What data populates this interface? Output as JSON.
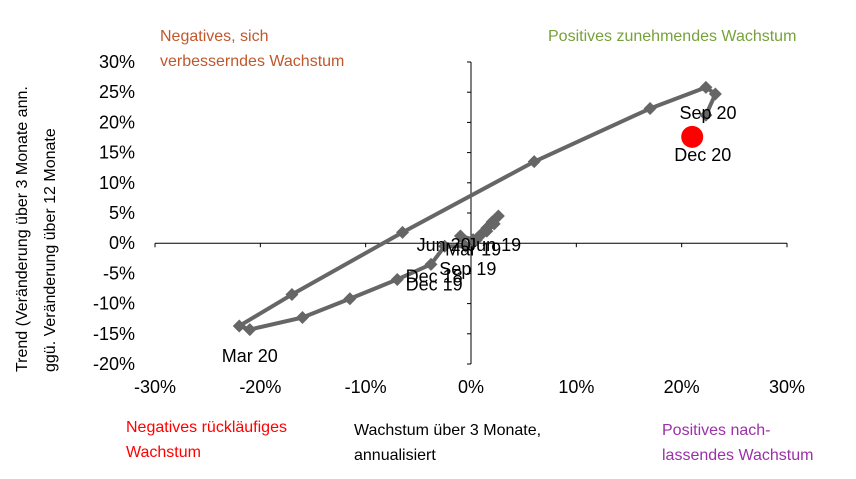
{
  "chart_data": {
    "type": "scatter",
    "xlabel": "Wachstum über 3 Monate, annualisiert",
    "xlabel_lines": [
      "Wachstum über 3 Monate,",
      "annualisiert"
    ],
    "ylabel_lines": [
      "Trend (Veränderung über 3 Monate ann.",
      "ggü. Veränderung über 12 Monate"
    ],
    "xlim": [
      -30,
      30
    ],
    "ylim": [
      -20,
      30
    ],
    "x_ticks": [
      -30,
      -20,
      -10,
      0,
      10,
      20,
      30
    ],
    "y_ticks": [
      -20,
      -15,
      -10,
      -5,
      0,
      5,
      10,
      15,
      20,
      25,
      30
    ],
    "x_tick_labels": [
      "-30%",
      "-20%",
      "-10%",
      "0%",
      "10%",
      "20%",
      "30%"
    ],
    "y_tick_labels": [
      "-20%",
      "-15%",
      "-10%",
      "-5%",
      "0%",
      "5%",
      "10%",
      "15%",
      "20%",
      "25%",
      "30%"
    ],
    "grid": false,
    "series": [
      {
        "color": "#666666",
        "marker": "diamond",
        "points": [
          {
            "x": 0.5,
            "y": 0.5
          },
          {
            "x": 1.0,
            "y": 1.5
          },
          {
            "x": 1.5,
            "y": 2.5
          },
          {
            "x": 2.0,
            "y": 3.5
          },
          {
            "x": 2.6,
            "y": 4.5
          },
          {
            "x": 2.2,
            "y": 3.2
          },
          {
            "x": 1.5,
            "y": 2.0
          },
          {
            "x": 0.8,
            "y": 1.2
          },
          {
            "x": 0.2,
            "y": 0.6
          },
          {
            "x": -1.0,
            "y": 1.2
          },
          {
            "x": -0.5,
            "y": -0.5
          },
          {
            "x": -2.5,
            "y": -0.5
          },
          {
            "x": -3.8,
            "y": -3.5
          },
          {
            "x": -7.0,
            "y": -6.0
          },
          {
            "x": -11.5,
            "y": -9.2
          },
          {
            "x": -16.0,
            "y": -12.3
          },
          {
            "x": -21.0,
            "y": -14.3
          },
          {
            "x": -22.0,
            "y": -13.7
          },
          {
            "x": -17.0,
            "y": -8.5
          },
          {
            "x": -6.5,
            "y": 1.8
          },
          {
            "x": 6.0,
            "y": 13.5
          },
          {
            "x": 17.0,
            "y": 22.3
          },
          {
            "x": 22.3,
            "y": 25.8
          },
          {
            "x": 23.2,
            "y": 24.7
          },
          {
            "x": 22.3,
            "y": 21.2
          }
        ]
      }
    ],
    "highlight": {
      "x": 21.0,
      "y": 17.6,
      "color": "#ff0000"
    },
    "annotations": [
      {
        "text": "Sep 20",
        "x": 22.5,
        "y": 20.6
      },
      {
        "text": "Dec 20",
        "x": 22.0,
        "y": 13.6
      },
      {
        "text": "Mar 20",
        "x": -21.0,
        "y": -19.7
      },
      {
        "text": "Jun 20",
        "x": -2.6,
        "y": -1.3
      },
      {
        "text": "Jun 19",
        "x": 2.2,
        "y": -1.3
      },
      {
        "text": "Mar 19",
        "x": 0.2,
        "y": -2.0
      },
      {
        "text": "Sep 19",
        "x": -0.3,
        "y": -5.3
      },
      {
        "text": "Dec 18",
        "x": -3.5,
        "y": -6.5
      },
      {
        "text": "Dec 19",
        "x": -3.5,
        "y": -7.8
      }
    ]
  },
  "quadrants": {
    "top_left": {
      "lines": [
        "Negatives, sich",
        "verbesserndes Wachstum"
      ],
      "color": "#c0582c"
    },
    "top_right": {
      "lines": [
        "Positives zunehmendes Wachstum"
      ],
      "color": "#77a13a"
    },
    "bottom_left": {
      "lines": [
        "Negatives rückläufiges",
        "Wachstum"
      ],
      "color": "#ff0000"
    },
    "bottom_right": {
      "lines": [
        "Positives nach-",
        "lassendes Wachstum"
      ],
      "color": "#9b30a8"
    }
  }
}
